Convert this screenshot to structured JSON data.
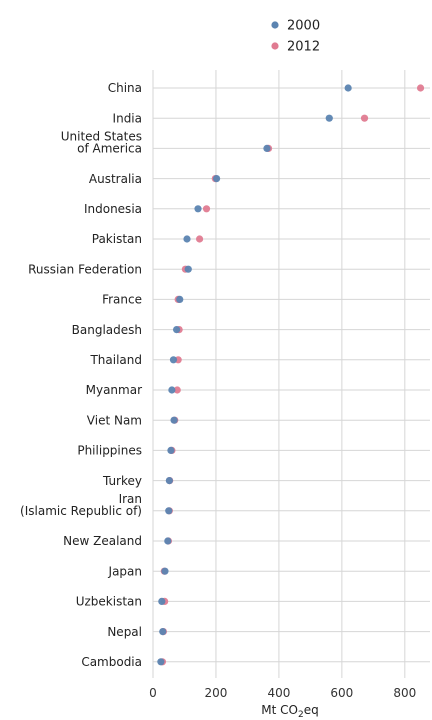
{
  "chart_data": {
    "type": "scatter",
    "orientation": "horizontal-dot-plot",
    "xlabel": "Mt CO2eq",
    "xlim": [
      0,
      880
    ],
    "xticks": [
      0,
      200,
      400,
      600,
      800
    ],
    "grid": true,
    "legend_position": "top",
    "categories": [
      "China",
      "India",
      "United States of America",
      "Australia",
      "Indonesia",
      "Pakistan",
      "Russian Federation",
      "France",
      "Bangladesh",
      "Thailand",
      "Myanmar",
      "Viet Nam",
      "Philippines",
      "Turkey",
      "Iran (Islamic Republic of)",
      "New Zealand",
      "Japan",
      "Uzbekistan",
      "Nepal",
      "Cambodia"
    ],
    "category_lines": [
      [
        "China"
      ],
      [
        "India"
      ],
      [
        "United States",
        "of America"
      ],
      [
        "Australia"
      ],
      [
        "Indonesia"
      ],
      [
        "Pakistan"
      ],
      [
        "Russian Federation"
      ],
      [
        "France"
      ],
      [
        "Bangladesh"
      ],
      [
        "Thailand"
      ],
      [
        "Myanmar"
      ],
      [
        "Viet Nam"
      ],
      [
        "Philippines"
      ],
      [
        "Turkey"
      ],
      [
        "Iran",
        "(Islamic Republic of)"
      ],
      [
        "New Zealand"
      ],
      [
        "Japan"
      ],
      [
        "Uzbekistan"
      ],
      [
        "Nepal"
      ],
      [
        "Cambodia"
      ]
    ],
    "series": [
      {
        "name": "2000",
        "color": "#5b84b1",
        "values": [
          620,
          560,
          362,
          202,
          143,
          108,
          112,
          85,
          75,
          65,
          60,
          67,
          57,
          52,
          50,
          47,
          38,
          28,
          31,
          25
        ]
      },
      {
        "name": "2012",
        "color": "#e07b91",
        "values": [
          850,
          672,
          367,
          198,
          170,
          148,
          103,
          80,
          83,
          80,
          77,
          69,
          60,
          53,
          52,
          49,
          36,
          37,
          33,
          30
        ]
      }
    ]
  }
}
